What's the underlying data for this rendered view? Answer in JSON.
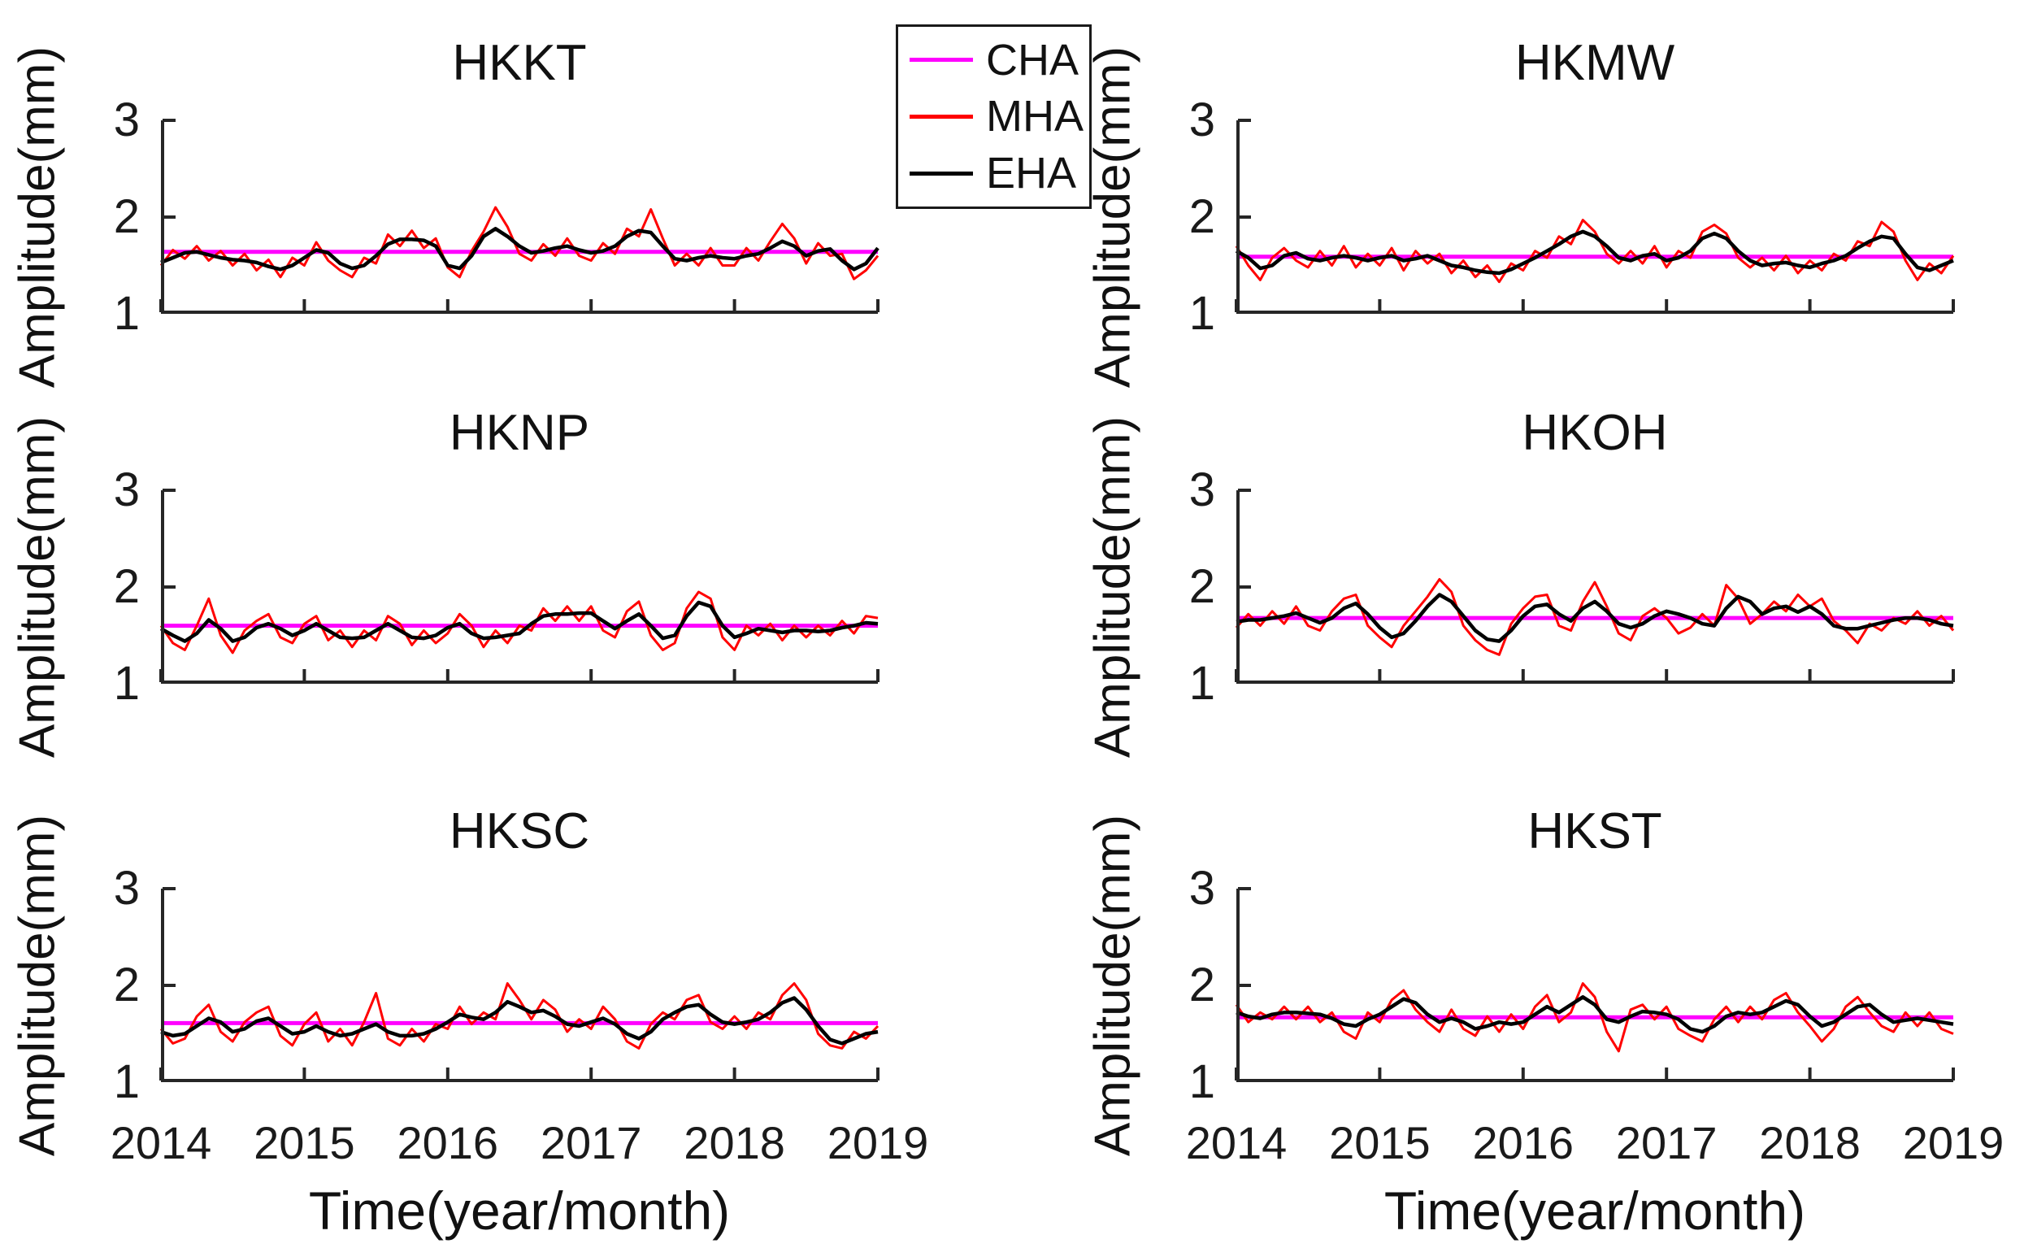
{
  "figure": {
    "background": "#ffffff"
  },
  "legend": {
    "entries": [
      {
        "label": "CHA",
        "color": "#FF00FF"
      },
      {
        "label": "MHA",
        "color": "#FF0000"
      },
      {
        "label": "EHA",
        "color": "#000000"
      }
    ]
  },
  "chart_data": {
    "type": "line",
    "title": "",
    "xlabel": "Time(year/month)",
    "ylabel": "Amplitude(mm)",
    "xlim": [
      2014,
      2019
    ],
    "ylim": [
      1,
      3
    ],
    "xticks": [
      2014,
      2015,
      2016,
      2017,
      2018,
      2019
    ],
    "yticks": [
      1,
      2,
      3
    ],
    "grid": false,
    "legend_position": "top-center",
    "axis_color": "#262626",
    "x_start": 2014.0,
    "x_step": 0.0833333,
    "series_names": [
      "CHA",
      "MHA",
      "EHA"
    ],
    "stations": [
      {
        "title": "HKKT",
        "cha": 1.64,
        "eha": [
          1.53,
          1.58,
          1.63,
          1.64,
          1.61,
          1.58,
          1.56,
          1.55,
          1.53,
          1.49,
          1.46,
          1.5,
          1.58,
          1.66,
          1.63,
          1.52,
          1.47,
          1.5,
          1.6,
          1.72,
          1.77,
          1.77,
          1.76,
          1.7,
          1.5,
          1.47,
          1.6,
          1.8,
          1.88,
          1.8,
          1.7,
          1.63,
          1.65,
          1.68,
          1.7,
          1.66,
          1.63,
          1.65,
          1.7,
          1.8,
          1.86,
          1.84,
          1.7,
          1.57,
          1.55,
          1.58,
          1.6,
          1.58,
          1.57,
          1.6,
          1.62,
          1.68,
          1.75,
          1.7,
          1.6,
          1.65,
          1.67,
          1.55,
          1.46,
          1.52,
          1.68
        ],
        "mha": [
          1.5,
          1.66,
          1.57,
          1.7,
          1.55,
          1.65,
          1.5,
          1.62,
          1.45,
          1.56,
          1.38,
          1.58,
          1.5,
          1.74,
          1.55,
          1.45,
          1.38,
          1.58,
          1.52,
          1.82,
          1.7,
          1.86,
          1.68,
          1.78,
          1.48,
          1.38,
          1.65,
          1.85,
          2.1,
          1.9,
          1.62,
          1.55,
          1.72,
          1.6,
          1.78,
          1.6,
          1.55,
          1.73,
          1.62,
          1.88,
          1.8,
          2.08,
          1.78,
          1.5,
          1.62,
          1.5,
          1.68,
          1.5,
          1.5,
          1.68,
          1.55,
          1.75,
          1.93,
          1.78,
          1.52,
          1.73,
          1.6,
          1.62,
          1.36,
          1.45,
          1.6
        ]
      },
      {
        "title": "HKMW",
        "cha": 1.59,
        "eha": [
          1.65,
          1.58,
          1.47,
          1.5,
          1.6,
          1.63,
          1.57,
          1.55,
          1.58,
          1.6,
          1.58,
          1.55,
          1.58,
          1.6,
          1.55,
          1.57,
          1.6,
          1.55,
          1.5,
          1.48,
          1.45,
          1.43,
          1.42,
          1.46,
          1.52,
          1.58,
          1.65,
          1.72,
          1.8,
          1.85,
          1.8,
          1.7,
          1.58,
          1.55,
          1.6,
          1.62,
          1.55,
          1.58,
          1.65,
          1.78,
          1.83,
          1.78,
          1.65,
          1.55,
          1.5,
          1.52,
          1.53,
          1.5,
          1.48,
          1.52,
          1.55,
          1.6,
          1.68,
          1.75,
          1.8,
          1.78,
          1.62,
          1.48,
          1.45,
          1.5,
          1.55
        ],
        "mha": [
          1.7,
          1.5,
          1.35,
          1.58,
          1.68,
          1.55,
          1.48,
          1.65,
          1.5,
          1.7,
          1.48,
          1.62,
          1.5,
          1.68,
          1.45,
          1.65,
          1.52,
          1.62,
          1.42,
          1.55,
          1.38,
          1.5,
          1.33,
          1.52,
          1.45,
          1.65,
          1.58,
          1.8,
          1.72,
          1.97,
          1.85,
          1.62,
          1.52,
          1.65,
          1.52,
          1.7,
          1.48,
          1.65,
          1.58,
          1.85,
          1.92,
          1.83,
          1.58,
          1.48,
          1.58,
          1.45,
          1.6,
          1.42,
          1.55,
          1.45,
          1.62,
          1.55,
          1.75,
          1.7,
          1.95,
          1.85,
          1.55,
          1.35,
          1.52,
          1.42,
          1.6
        ]
      },
      {
        "title": "HKNP",
        "cha": 1.6,
        "eha": [
          1.57,
          1.5,
          1.44,
          1.52,
          1.66,
          1.57,
          1.44,
          1.48,
          1.58,
          1.62,
          1.57,
          1.5,
          1.55,
          1.62,
          1.55,
          1.48,
          1.47,
          1.48,
          1.55,
          1.62,
          1.55,
          1.48,
          1.47,
          1.5,
          1.58,
          1.62,
          1.52,
          1.47,
          1.48,
          1.5,
          1.52,
          1.62,
          1.7,
          1.72,
          1.72,
          1.73,
          1.73,
          1.65,
          1.57,
          1.65,
          1.72,
          1.6,
          1.47,
          1.5,
          1.7,
          1.84,
          1.8,
          1.6,
          1.48,
          1.52,
          1.57,
          1.55,
          1.53,
          1.55,
          1.55,
          1.54,
          1.55,
          1.58,
          1.6,
          1.63,
          1.62
        ],
        "mha": [
          1.6,
          1.42,
          1.35,
          1.6,
          1.88,
          1.5,
          1.32,
          1.55,
          1.65,
          1.72,
          1.48,
          1.42,
          1.62,
          1.7,
          1.45,
          1.55,
          1.38,
          1.55,
          1.45,
          1.7,
          1.62,
          1.4,
          1.55,
          1.42,
          1.52,
          1.72,
          1.6,
          1.38,
          1.55,
          1.42,
          1.6,
          1.55,
          1.78,
          1.65,
          1.8,
          1.65,
          1.8,
          1.55,
          1.48,
          1.75,
          1.85,
          1.5,
          1.35,
          1.42,
          1.78,
          1.95,
          1.88,
          1.48,
          1.35,
          1.6,
          1.5,
          1.62,
          1.45,
          1.6,
          1.48,
          1.6,
          1.5,
          1.65,
          1.52,
          1.7,
          1.68
        ]
      },
      {
        "title": "HKOH",
        "cha": 1.68,
        "eha": [
          1.64,
          1.66,
          1.66,
          1.68,
          1.7,
          1.73,
          1.68,
          1.63,
          1.68,
          1.78,
          1.83,
          1.72,
          1.58,
          1.48,
          1.52,
          1.65,
          1.8,
          1.92,
          1.85,
          1.7,
          1.55,
          1.46,
          1.44,
          1.55,
          1.7,
          1.8,
          1.82,
          1.72,
          1.65,
          1.78,
          1.85,
          1.75,
          1.62,
          1.58,
          1.62,
          1.7,
          1.75,
          1.72,
          1.68,
          1.62,
          1.6,
          1.78,
          1.9,
          1.85,
          1.72,
          1.78,
          1.8,
          1.74,
          1.8,
          1.72,
          1.6,
          1.57,
          1.57,
          1.6,
          1.63,
          1.66,
          1.68,
          1.68,
          1.66,
          1.62,
          1.6
        ],
        "mha": [
          1.58,
          1.72,
          1.6,
          1.75,
          1.62,
          1.8,
          1.6,
          1.55,
          1.75,
          1.88,
          1.92,
          1.6,
          1.48,
          1.38,
          1.6,
          1.75,
          1.9,
          2.08,
          1.95,
          1.6,
          1.45,
          1.35,
          1.3,
          1.62,
          1.78,
          1.9,
          1.92,
          1.6,
          1.55,
          1.85,
          2.05,
          1.8,
          1.52,
          1.45,
          1.7,
          1.78,
          1.68,
          1.52,
          1.58,
          1.72,
          1.6,
          2.02,
          1.88,
          1.62,
          1.72,
          1.85,
          1.75,
          1.92,
          1.8,
          1.88,
          1.65,
          1.55,
          1.42,
          1.62,
          1.55,
          1.68,
          1.62,
          1.75,
          1.6,
          1.7,
          1.55
        ]
      },
      {
        "title": "HKSC",
        "cha": 1.61,
        "eha": [
          1.52,
          1.48,
          1.5,
          1.58,
          1.66,
          1.62,
          1.52,
          1.55,
          1.63,
          1.66,
          1.58,
          1.5,
          1.52,
          1.58,
          1.52,
          1.48,
          1.5,
          1.55,
          1.6,
          1.52,
          1.48,
          1.48,
          1.5,
          1.55,
          1.62,
          1.7,
          1.67,
          1.65,
          1.72,
          1.83,
          1.78,
          1.72,
          1.74,
          1.68,
          1.6,
          1.58,
          1.62,
          1.66,
          1.6,
          1.5,
          1.45,
          1.52,
          1.65,
          1.72,
          1.78,
          1.8,
          1.7,
          1.62,
          1.6,
          1.62,
          1.65,
          1.72,
          1.82,
          1.87,
          1.75,
          1.58,
          1.44,
          1.4,
          1.45,
          1.5,
          1.52
        ],
        "mha": [
          1.55,
          1.4,
          1.45,
          1.68,
          1.8,
          1.52,
          1.42,
          1.62,
          1.72,
          1.78,
          1.48,
          1.38,
          1.6,
          1.72,
          1.42,
          1.55,
          1.38,
          1.62,
          1.92,
          1.45,
          1.38,
          1.55,
          1.42,
          1.6,
          1.55,
          1.78,
          1.6,
          1.72,
          1.65,
          2.02,
          1.85,
          1.65,
          1.85,
          1.75,
          1.52,
          1.65,
          1.55,
          1.78,
          1.65,
          1.42,
          1.35,
          1.6,
          1.72,
          1.65,
          1.85,
          1.9,
          1.62,
          1.55,
          1.68,
          1.55,
          1.72,
          1.65,
          1.9,
          2.02,
          1.85,
          1.5,
          1.38,
          1.35,
          1.52,
          1.45,
          1.58
        ]
      },
      {
        "title": "HKST",
        "cha": 1.67,
        "eha": [
          1.72,
          1.68,
          1.66,
          1.7,
          1.72,
          1.72,
          1.71,
          1.7,
          1.66,
          1.6,
          1.58,
          1.65,
          1.7,
          1.78,
          1.86,
          1.82,
          1.7,
          1.62,
          1.66,
          1.62,
          1.55,
          1.58,
          1.62,
          1.6,
          1.62,
          1.7,
          1.78,
          1.72,
          1.8,
          1.88,
          1.8,
          1.65,
          1.62,
          1.68,
          1.73,
          1.72,
          1.7,
          1.65,
          1.55,
          1.52,
          1.58,
          1.68,
          1.72,
          1.7,
          1.72,
          1.78,
          1.84,
          1.8,
          1.68,
          1.58,
          1.62,
          1.7,
          1.78,
          1.8,
          1.7,
          1.62,
          1.64,
          1.66,
          1.64,
          1.62,
          1.6
        ],
        "mha": [
          1.8,
          1.62,
          1.72,
          1.65,
          1.78,
          1.65,
          1.78,
          1.62,
          1.72,
          1.52,
          1.45,
          1.72,
          1.62,
          1.85,
          1.95,
          1.75,
          1.62,
          1.52,
          1.75,
          1.55,
          1.48,
          1.68,
          1.52,
          1.7,
          1.55,
          1.78,
          1.9,
          1.62,
          1.72,
          2.02,
          1.88,
          1.52,
          1.32,
          1.75,
          1.8,
          1.65,
          1.78,
          1.55,
          1.48,
          1.42,
          1.65,
          1.78,
          1.62,
          1.78,
          1.65,
          1.85,
          1.92,
          1.72,
          1.58,
          1.42,
          1.55,
          1.78,
          1.88,
          1.72,
          1.58,
          1.52,
          1.72,
          1.58,
          1.72,
          1.55,
          1.5
        ]
      }
    ]
  }
}
